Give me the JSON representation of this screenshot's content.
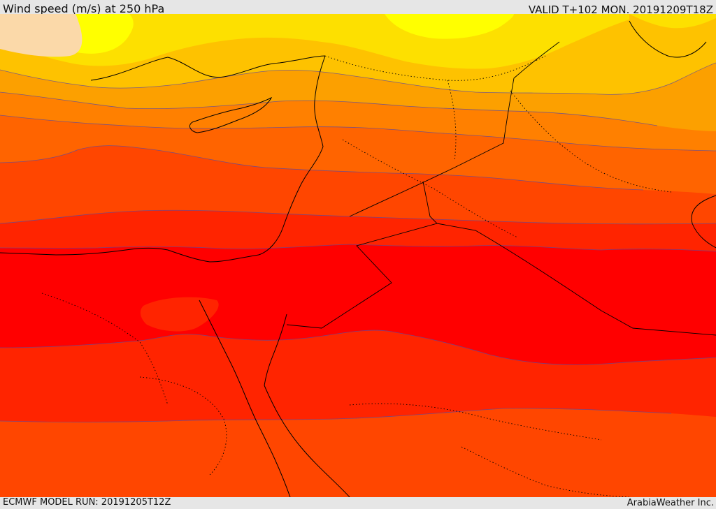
{
  "header": {
    "title": "Wind speed (m/s) at 250 hPa",
    "valid": "VALID T+102 MON. 20191209T18Z"
  },
  "footer": {
    "model_run": "ECMWF MODEL RUN: 20191205T12Z",
    "brand": "ArabiaWeather Inc."
  },
  "map": {
    "field": "250 hPa wind speed",
    "colors": {
      "band_1": "#fbd9a9",
      "band_2": "#ffff00",
      "band_3": "#fde000",
      "band_4": "#fec200",
      "band_5": "#fca000",
      "band_6": "#ff8000",
      "band_7": "#ff6400",
      "band_8": "#ff4600",
      "band_9": "#ff2400",
      "band_10": "#ff0000",
      "contour": "#5a4aa0",
      "coastline": "#000000"
    }
  }
}
